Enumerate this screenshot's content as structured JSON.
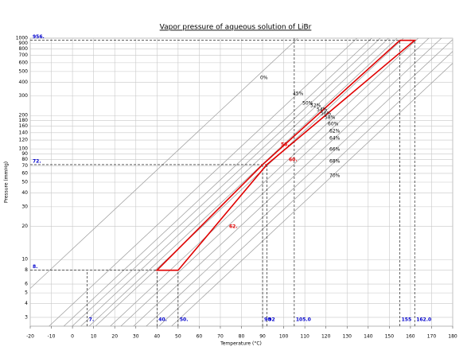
{
  "chart_data": {
    "type": "line",
    "title": "Vapor pressure of aqueous solution of LiBr",
    "x_label": "Temperature (°C)",
    "y_label": "Pressure (mmHg)",
    "xlim": [
      -20,
      180
    ],
    "xticks": [
      -20,
      -10,
      0,
      10,
      20,
      30,
      40,
      50,
      60,
      70,
      80,
      90,
      100,
      110,
      120,
      130,
      140,
      150,
      160,
      170,
      180
    ],
    "ylim": [
      2.5,
      1000
    ],
    "yticks": [
      3,
      4,
      5,
      6,
      8,
      10,
      20,
      30,
      40,
      50,
      60,
      70,
      80,
      90,
      100,
      120,
      140,
      160,
      180,
      200,
      300,
      400,
      500,
      600,
      700,
      800,
      900,
      1000
    ],
    "y_log": true,
    "grid": true,
    "series": [
      {
        "name": "0%",
        "color": "#9a9a9a",
        "x": [
          -39.1,
          106.7
        ],
        "values": [
          2.5,
          1000
        ]
      },
      {
        "name": "45%",
        "color": "#9a9a9a",
        "x": [
          -11.1,
          134.7
        ],
        "values": [
          2.5,
          1000
        ]
      },
      {
        "name": "50%",
        "color": "#9a9a9a",
        "x": [
          -4.1,
          141.7
        ],
        "values": [
          2.5,
          1000
        ]
      },
      {
        "name": "52%",
        "color": "#9a9a9a",
        "x": [
          -0.1,
          145.7
        ],
        "values": [
          2.5,
          1000
        ]
      },
      {
        "name": "54%",
        "color": "#9a9a9a",
        "x": [
          3.9,
          149.7
        ],
        "values": [
          2.5,
          1000
        ]
      },
      {
        "name": "56%",
        "color": "#9a9a9a",
        "x": [
          7.9,
          153.7
        ],
        "values": [
          2.5,
          1000
        ]
      },
      {
        "name": "58%",
        "color": "#9a9a9a",
        "x": [
          10.9,
          156.7
        ],
        "values": [
          2.5,
          1000
        ]
      },
      {
        "name": "60%",
        "color": "#9a9a9a",
        "x": [
          17.9,
          163.7
        ],
        "values": [
          2.5,
          1000
        ]
      },
      {
        "name": "62%",
        "color": "#9a9a9a",
        "x": [
          22.9,
          168.7
        ],
        "values": [
          2.5,
          1000
        ]
      },
      {
        "name": "64%",
        "color": "#9a9a9a",
        "x": [
          28.9,
          174.7
        ],
        "values": [
          2.5,
          1000
        ]
      },
      {
        "name": "66%",
        "color": "#9a9a9a",
        "x": [
          34.9,
          180.7
        ],
        "values": [
          2.5,
          1000
        ]
      },
      {
        "name": "68%",
        "color": "#9a9a9a",
        "x": [
          40.9,
          186.7
        ],
        "values": [
          2.5,
          1000
        ]
      },
      {
        "name": "70%",
        "color": "#9a9a9a",
        "x": [
          46.9,
          192.7
        ],
        "values": [
          2.5,
          1000
        ]
      }
    ],
    "cycle": {
      "color": "#e00000",
      "x": [
        40,
        50,
        92,
        162,
        155,
        90
      ],
      "values": [
        8,
        8,
        72,
        956,
        956,
        72
      ],
      "labels": [
        "58.",
        "60.",
        "62."
      ]
    },
    "h_guides": [
      {
        "label": "956.",
        "value": 956,
        "x_end": 162
      },
      {
        "label": "72.",
        "value": 72,
        "x_end": 92
      },
      {
        "label": "8.",
        "value": 8,
        "x_end": 40
      }
    ],
    "v_guides": [
      {
        "label": "7.",
        "value": 7,
        "y_end": 8
      },
      {
        "label": "40.",
        "value": 40,
        "y_end": 8
      },
      {
        "label": "50.",
        "value": 50,
        "y_end": 8
      },
      {
        "label": "90",
        "value": 90,
        "y_end": 72
      },
      {
        "label": "92",
        "value": 92,
        "y_end": 72
      },
      {
        "label": "105.0",
        "value": 105,
        "y_end": 1000
      },
      {
        "label": "155",
        "value": 155,
        "y_end": 956
      },
      {
        "label": "162.0",
        "value": 162,
        "y_end": 956
      }
    ]
  }
}
